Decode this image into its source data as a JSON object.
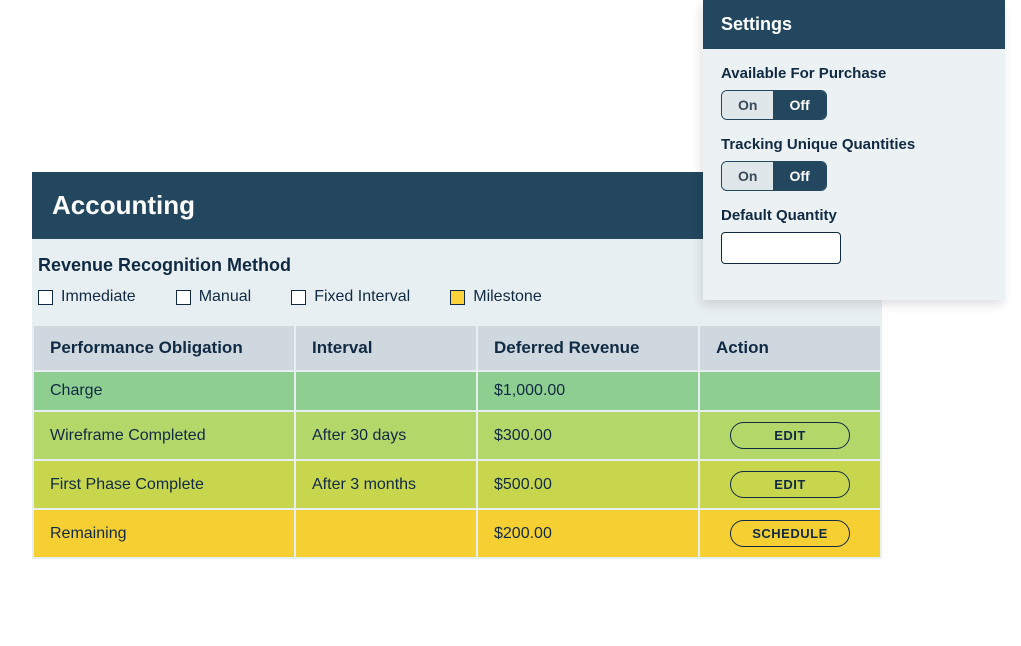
{
  "accounting": {
    "title": "Accounting",
    "subtitle": "Revenue Recognition Method",
    "options": [
      {
        "label": "Immediate",
        "checked": false
      },
      {
        "label": "Manual",
        "checked": false
      },
      {
        "label": "Fixed Interval",
        "checked": false
      },
      {
        "label": "Milestone",
        "checked": true
      }
    ],
    "columns": [
      "Performance Obligation",
      "Interval",
      "Deferred Revenue",
      "Action"
    ],
    "rows": [
      {
        "obligation": "Charge",
        "interval": "",
        "revenue": "$1,000.00",
        "action": "",
        "bg": "#8fce91"
      },
      {
        "obligation": "Wireframe Completed",
        "interval": "After 30 days",
        "revenue": "$300.00",
        "action": "EDIT",
        "bg": "#b4d76a"
      },
      {
        "obligation": "First Phase Complete",
        "interval": "After 3 months",
        "revenue": "$500.00",
        "action": "EDIT",
        "bg": "#c8d64e"
      },
      {
        "obligation": "Remaining",
        "interval": "",
        "revenue": "$200.00",
        "action": "SCHEDULE",
        "bg": "#f6cf33"
      }
    ],
    "header_bg": "#22475f",
    "body_bg": "#e8eff2",
    "th_bg": "#cfd8df",
    "text_color": "#102a43"
  },
  "settings": {
    "title": "Settings",
    "available": {
      "label": "Available For Purchase",
      "on": "On",
      "off": "Off",
      "value": "Off"
    },
    "tracking": {
      "label": "Tracking Unique Quantities",
      "on": "On",
      "off": "Off",
      "value": "Off"
    },
    "default_qty": {
      "label": "Default Quantity",
      "value": ""
    },
    "panel_bg": "#ecf2f3",
    "header_bg": "#22475f"
  }
}
